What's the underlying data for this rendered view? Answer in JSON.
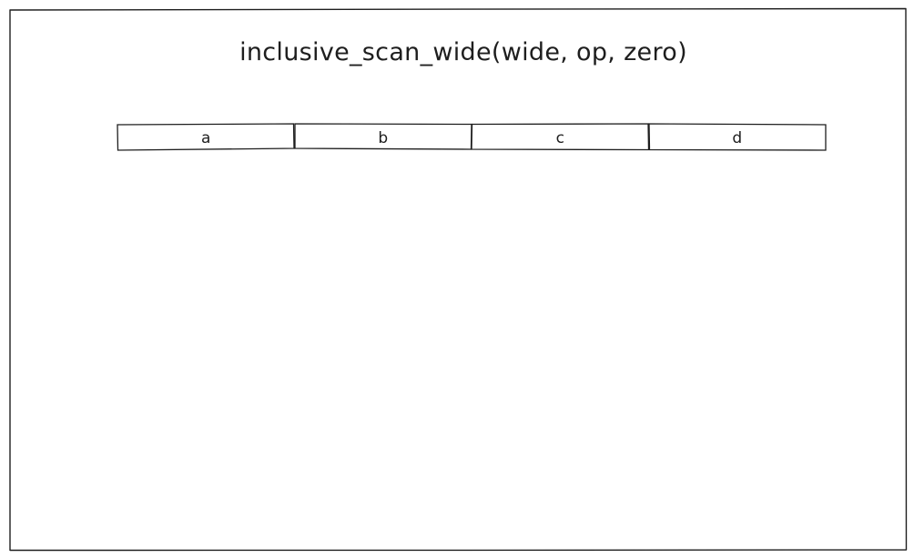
{
  "diagram": {
    "title": "inclusive_scan_wide(wide, op, zero)",
    "cells": [
      {
        "label": "a"
      },
      {
        "label": "b"
      },
      {
        "label": "c"
      },
      {
        "label": "d"
      }
    ]
  },
  "colors": {
    "stroke": "#1e1e1e",
    "background": "#ffffff"
  }
}
